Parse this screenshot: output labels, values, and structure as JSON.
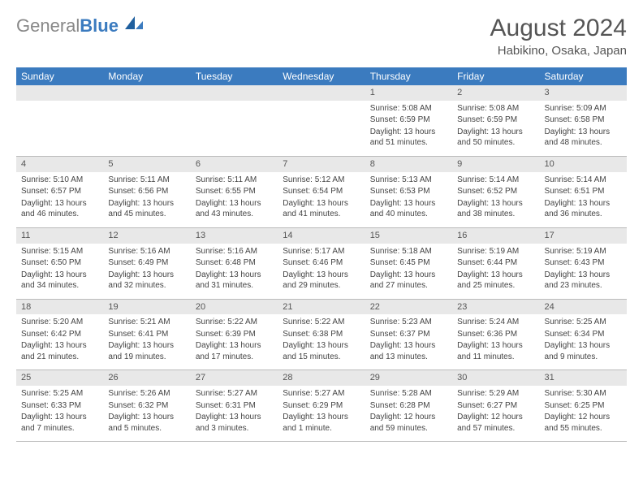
{
  "logo": {
    "gray": "General",
    "blue": "Blue"
  },
  "title": "August 2024",
  "location": "Habikino, Osaka, Japan",
  "colors": {
    "header_bg": "#3b7bbf",
    "header_text": "#ffffff",
    "daynum_bg": "#e8e8e8",
    "border": "#bbbbbb",
    "text": "#444444"
  },
  "day_labels": [
    "Sunday",
    "Monday",
    "Tuesday",
    "Wednesday",
    "Thursday",
    "Friday",
    "Saturday"
  ],
  "weeks": [
    {
      "nums": [
        "",
        "",
        "",
        "",
        "1",
        "2",
        "3"
      ],
      "cells": [
        null,
        null,
        null,
        null,
        {
          "sr": "5:08 AM",
          "ss": "6:59 PM",
          "dl": "13 hours and 51 minutes."
        },
        {
          "sr": "5:08 AM",
          "ss": "6:59 PM",
          "dl": "13 hours and 50 minutes."
        },
        {
          "sr": "5:09 AM",
          "ss": "6:58 PM",
          "dl": "13 hours and 48 minutes."
        }
      ]
    },
    {
      "nums": [
        "4",
        "5",
        "6",
        "7",
        "8",
        "9",
        "10"
      ],
      "cells": [
        {
          "sr": "5:10 AM",
          "ss": "6:57 PM",
          "dl": "13 hours and 46 minutes."
        },
        {
          "sr": "5:11 AM",
          "ss": "6:56 PM",
          "dl": "13 hours and 45 minutes."
        },
        {
          "sr": "5:11 AM",
          "ss": "6:55 PM",
          "dl": "13 hours and 43 minutes."
        },
        {
          "sr": "5:12 AM",
          "ss": "6:54 PM",
          "dl": "13 hours and 41 minutes."
        },
        {
          "sr": "5:13 AM",
          "ss": "6:53 PM",
          "dl": "13 hours and 40 minutes."
        },
        {
          "sr": "5:14 AM",
          "ss": "6:52 PM",
          "dl": "13 hours and 38 minutes."
        },
        {
          "sr": "5:14 AM",
          "ss": "6:51 PM",
          "dl": "13 hours and 36 minutes."
        }
      ]
    },
    {
      "nums": [
        "11",
        "12",
        "13",
        "14",
        "15",
        "16",
        "17"
      ],
      "cells": [
        {
          "sr": "5:15 AM",
          "ss": "6:50 PM",
          "dl": "13 hours and 34 minutes."
        },
        {
          "sr": "5:16 AM",
          "ss": "6:49 PM",
          "dl": "13 hours and 32 minutes."
        },
        {
          "sr": "5:16 AM",
          "ss": "6:48 PM",
          "dl": "13 hours and 31 minutes."
        },
        {
          "sr": "5:17 AM",
          "ss": "6:46 PM",
          "dl": "13 hours and 29 minutes."
        },
        {
          "sr": "5:18 AM",
          "ss": "6:45 PM",
          "dl": "13 hours and 27 minutes."
        },
        {
          "sr": "5:19 AM",
          "ss": "6:44 PM",
          "dl": "13 hours and 25 minutes."
        },
        {
          "sr": "5:19 AM",
          "ss": "6:43 PM",
          "dl": "13 hours and 23 minutes."
        }
      ]
    },
    {
      "nums": [
        "18",
        "19",
        "20",
        "21",
        "22",
        "23",
        "24"
      ],
      "cells": [
        {
          "sr": "5:20 AM",
          "ss": "6:42 PM",
          "dl": "13 hours and 21 minutes."
        },
        {
          "sr": "5:21 AM",
          "ss": "6:41 PM",
          "dl": "13 hours and 19 minutes."
        },
        {
          "sr": "5:22 AM",
          "ss": "6:39 PM",
          "dl": "13 hours and 17 minutes."
        },
        {
          "sr": "5:22 AM",
          "ss": "6:38 PM",
          "dl": "13 hours and 15 minutes."
        },
        {
          "sr": "5:23 AM",
          "ss": "6:37 PM",
          "dl": "13 hours and 13 minutes."
        },
        {
          "sr": "5:24 AM",
          "ss": "6:36 PM",
          "dl": "13 hours and 11 minutes."
        },
        {
          "sr": "5:25 AM",
          "ss": "6:34 PM",
          "dl": "13 hours and 9 minutes."
        }
      ]
    },
    {
      "nums": [
        "25",
        "26",
        "27",
        "28",
        "29",
        "30",
        "31"
      ],
      "cells": [
        {
          "sr": "5:25 AM",
          "ss": "6:33 PM",
          "dl": "13 hours and 7 minutes."
        },
        {
          "sr": "5:26 AM",
          "ss": "6:32 PM",
          "dl": "13 hours and 5 minutes."
        },
        {
          "sr": "5:27 AM",
          "ss": "6:31 PM",
          "dl": "13 hours and 3 minutes."
        },
        {
          "sr": "5:27 AM",
          "ss": "6:29 PM",
          "dl": "13 hours and 1 minute."
        },
        {
          "sr": "5:28 AM",
          "ss": "6:28 PM",
          "dl": "12 hours and 59 minutes."
        },
        {
          "sr": "5:29 AM",
          "ss": "6:27 PM",
          "dl": "12 hours and 57 minutes."
        },
        {
          "sr": "5:30 AM",
          "ss": "6:25 PM",
          "dl": "12 hours and 55 minutes."
        }
      ]
    }
  ]
}
